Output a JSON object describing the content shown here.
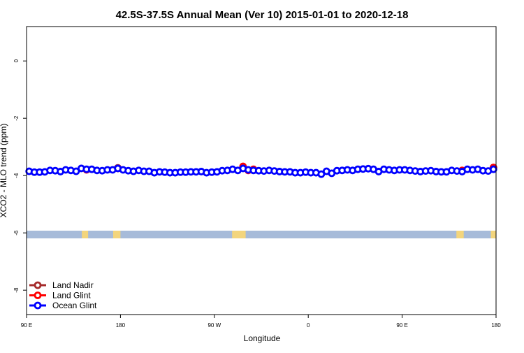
{
  "chart_data": {
    "type": "scatter",
    "title": "42.5S-37.5S Annual Mean (Ver 10)   2015-01-01 to 2020-12-18",
    "x_label": "Longitude",
    "y_label": "XCO2 - MLO trend (ppm)",
    "xlim": [
      90,
      540
    ],
    "xticks": [
      {
        "value": 90,
        "label": "90 E"
      },
      {
        "value": 180,
        "label": "180"
      },
      {
        "value": 270,
        "label": "90 W"
      },
      {
        "value": 360,
        "label": "0"
      },
      {
        "value": 450,
        "label": "90 E"
      },
      {
        "value": 540,
        "label": "180"
      }
    ],
    "ylim": [
      -8.85,
      1.2
    ],
    "yticks": [
      0,
      -2,
      -4,
      -6,
      -8
    ],
    "land_ranges": [
      [
        143,
        149
      ],
      [
        173,
        180
      ],
      [
        287,
        300
      ],
      [
        502,
        509
      ],
      [
        535,
        540
      ]
    ],
    "legend": "bottom-left",
    "series": [
      {
        "name": "Land Nadir",
        "color": "#a52a2a",
        "x": [
          177.5,
          537.5
        ],
        "values": [
          -3.73,
          -3.72
        ]
      },
      {
        "name": "Land Glint",
        "color": "#ff0000",
        "x": [
          147.5,
          177.5,
          297.5,
          302.5,
          307.5,
          507.5,
          537.5
        ],
        "values": [
          -3.8,
          -3.75,
          -3.68,
          -3.82,
          -3.78,
          -3.82,
          -3.72
        ]
      },
      {
        "name": "Ocean Glint",
        "color": "#0000ff",
        "x": [
          92.5,
          97.5,
          102.5,
          107.5,
          112.5,
          117.5,
          122.5,
          127.5,
          132.5,
          137.5,
          142.5,
          147.5,
          152.5,
          157.5,
          162.5,
          167.5,
          172.5,
          177.5,
          182.5,
          187.5,
          192.5,
          197.5,
          202.5,
          207.5,
          212.5,
          217.5,
          222.5,
          227.5,
          232.5,
          237.5,
          242.5,
          247.5,
          252.5,
          257.5,
          262.5,
          267.5,
          272.5,
          277.5,
          282.5,
          287.5,
          292.5,
          297.5,
          302.5,
          307.5,
          312.5,
          317.5,
          322.5,
          327.5,
          332.5,
          337.5,
          342.5,
          347.5,
          352.5,
          357.5,
          362.5,
          367.5,
          372.5,
          377.5,
          382.5,
          387.5,
          392.5,
          397.5,
          402.5,
          407.5,
          412.5,
          417.5,
          422.5,
          427.5,
          432.5,
          437.5,
          442.5,
          447.5,
          452.5,
          457.5,
          462.5,
          467.5,
          472.5,
          477.5,
          482.5,
          487.5,
          492.5,
          497.5,
          502.5,
          507.5,
          512.5,
          517.5,
          522.5,
          527.5,
          532.5,
          537.5
        ],
        "values": [
          -3.85,
          -3.88,
          -3.88,
          -3.87,
          -3.82,
          -3.83,
          -3.86,
          -3.8,
          -3.82,
          -3.85,
          -3.75,
          -3.78,
          -3.78,
          -3.82,
          -3.83,
          -3.8,
          -3.8,
          -3.75,
          -3.8,
          -3.83,
          -3.85,
          -3.82,
          -3.85,
          -3.85,
          -3.9,
          -3.87,
          -3.88,
          -3.9,
          -3.9,
          -3.88,
          -3.88,
          -3.87,
          -3.87,
          -3.86,
          -3.9,
          -3.88,
          -3.87,
          -3.83,
          -3.82,
          -3.78,
          -3.82,
          -3.75,
          -3.8,
          -3.82,
          -3.83,
          -3.84,
          -3.82,
          -3.84,
          -3.86,
          -3.87,
          -3.87,
          -3.9,
          -3.9,
          -3.88,
          -3.9,
          -3.9,
          -3.95,
          -3.85,
          -3.92,
          -3.83,
          -3.82,
          -3.8,
          -3.82,
          -3.78,
          -3.77,
          -3.76,
          -3.78,
          -3.86,
          -3.78,
          -3.8,
          -3.82,
          -3.8,
          -3.8,
          -3.82,
          -3.84,
          -3.86,
          -3.84,
          -3.83,
          -3.86,
          -3.87,
          -3.87,
          -3.82,
          -3.84,
          -3.86,
          -3.78,
          -3.8,
          -3.78,
          -3.83,
          -3.84,
          -3.78
        ]
      }
    ]
  }
}
